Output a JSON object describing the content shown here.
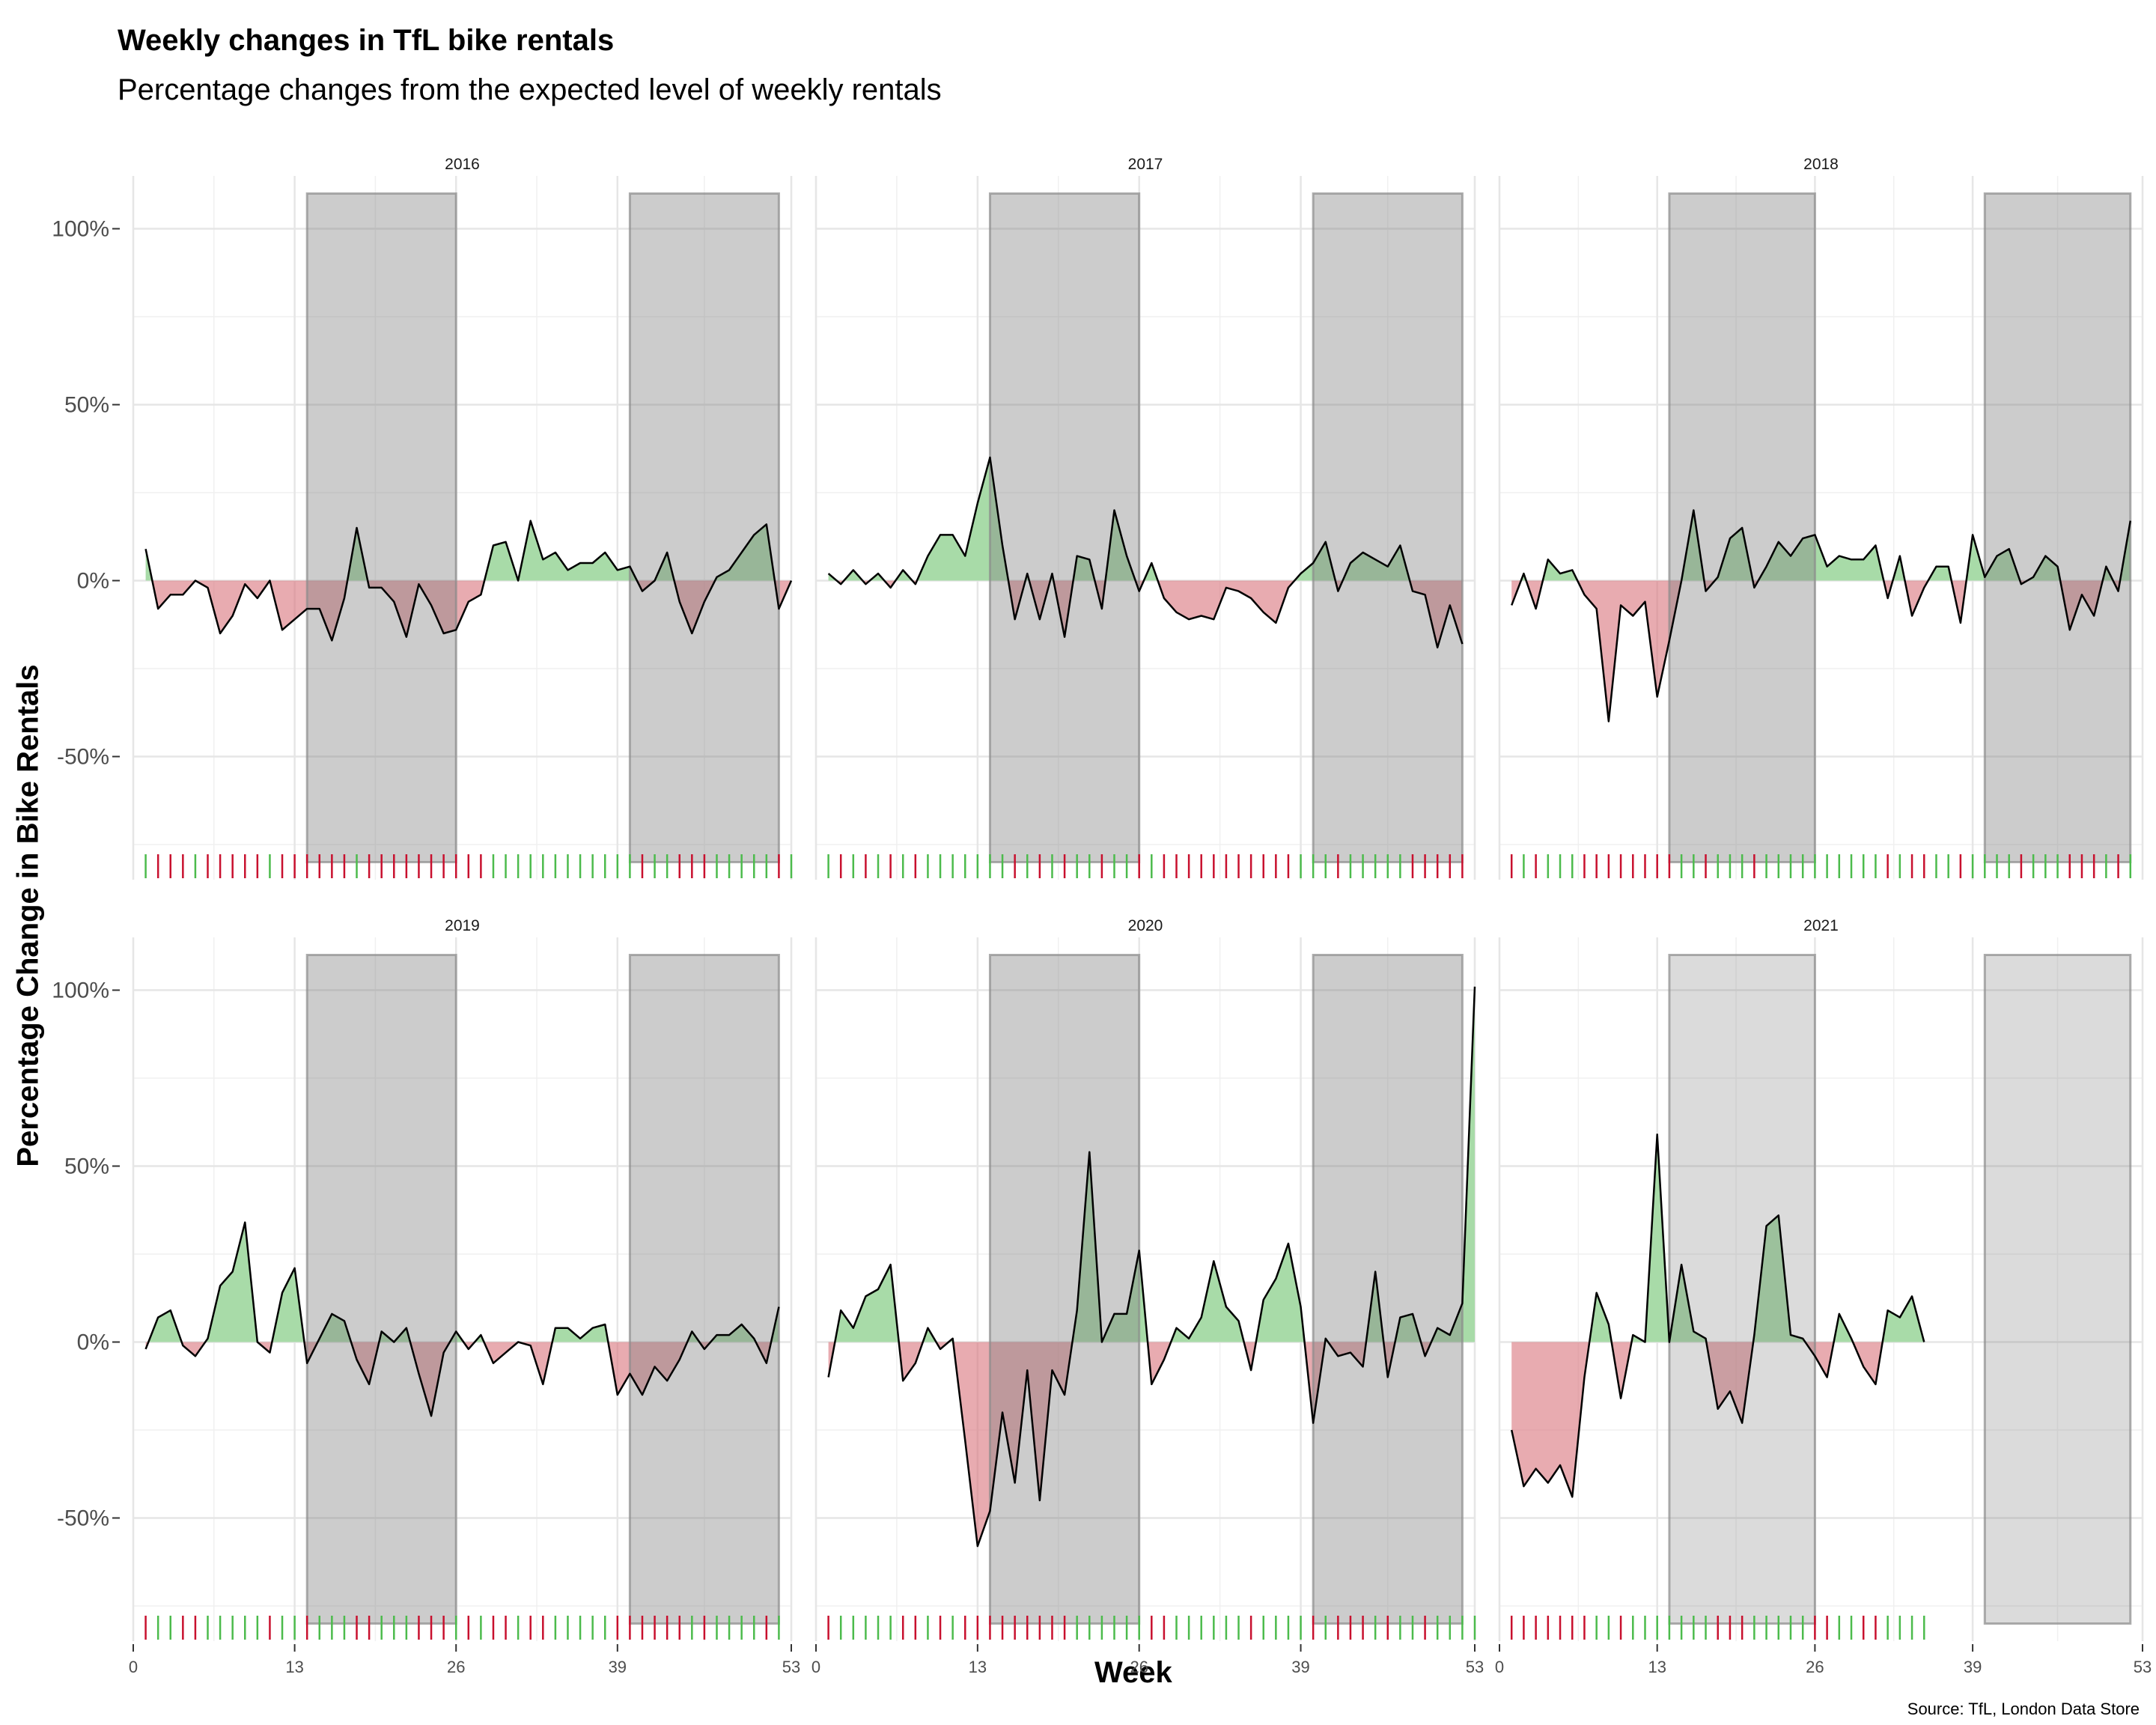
{
  "title": "Weekly changes in TfL bike rentals",
  "subtitle": "Percentage changes from the expected level of weekly rentals",
  "caption": "Source: TfL, London Data Store",
  "chart_data": {
    "type": "area",
    "title": "Weekly changes in TfL bike rentals",
    "subtitle": "Percentage changes from the expected level of weekly rentals",
    "xlabel": "Week",
    "ylabel": "Percentage Change in Bike Rentals",
    "xlim": [
      0,
      53
    ],
    "ylim": [
      -85,
      115
    ],
    "x_ticks": [
      0,
      13,
      26,
      39,
      53
    ],
    "y_ticks": [
      -50,
      50,
      100
    ],
    "y_tick_labels": [
      "-50%",
      "0%",
      "50%",
      "100%"
    ],
    "y_minor_ticks": [
      0
    ],
    "shaded_week_ranges": [
      [
        14,
        26
      ],
      [
        40,
        52
      ]
    ],
    "shaded_y_range": [
      -80,
      110
    ],
    "colors": {
      "positive": "#a8dba8",
      "negative": "#d9737b",
      "rug_positive": "#4cbb4c",
      "rug_negative": "#c8102e",
      "shade": "#7f7f7f",
      "line": "#000000"
    },
    "panels": [
      {
        "year": "2016",
        "shade_intensity": "dark",
        "values": [
          9,
          -8,
          -4,
          -4,
          0,
          -2,
          -15,
          -10,
          -1,
          -5,
          0,
          -14,
          -11,
          -8,
          -8,
          -17,
          -5,
          15,
          -2,
          -2,
          -6,
          -16,
          -1,
          -7,
          -15,
          -14,
          -6,
          -4,
          10,
          11,
          0,
          17,
          6,
          8,
          3,
          5,
          5,
          8,
          3,
          4,
          -3,
          0,
          8,
          -6,
          -15,
          -6,
          1,
          3,
          8,
          13,
          16,
          -8,
          0
        ]
      },
      {
        "year": "2017",
        "shade_intensity": "dark",
        "values": [
          2,
          -1,
          3,
          -1,
          2,
          -2,
          3,
          -1,
          7,
          13,
          13,
          7,
          22,
          35,
          10,
          -11,
          2,
          -11,
          2,
          -16,
          7,
          6,
          -8,
          20,
          7,
          -3,
          5,
          -5,
          -9,
          -11,
          -10,
          -11,
          -2,
          -3,
          -5,
          -9,
          -12,
          -2,
          2,
          5,
          11,
          -3,
          5,
          8,
          6,
          4,
          10,
          -3,
          -4,
          -19,
          -7,
          -18
        ]
      },
      {
        "year": "2018",
        "shade_intensity": "dark",
        "values": [
          -7,
          2,
          -8,
          6,
          2,
          3,
          -4,
          -8,
          -40,
          -7,
          -10,
          -6,
          -33,
          -17,
          0,
          20,
          -3,
          1,
          12,
          15,
          -2,
          4,
          11,
          7,
          12,
          13,
          4,
          7,
          6,
          6,
          10,
          -5,
          7,
          -10,
          -2,
          4,
          4,
          -12,
          13,
          1,
          7,
          9,
          -1,
          1,
          7,
          4,
          -14,
          -4,
          -10,
          4,
          -3,
          17
        ]
      },
      {
        "year": "2019",
        "shade_intensity": "dark",
        "values": [
          -2,
          7,
          9,
          -1,
          -4,
          1,
          16,
          20,
          34,
          0,
          -3,
          14,
          21,
          -6,
          1,
          8,
          6,
          -5,
          -12,
          3,
          0,
          4,
          -9,
          -21,
          -3,
          3,
          -2,
          2,
          -6,
          -3,
          0,
          -1,
          -12,
          4,
          4,
          1,
          4,
          5,
          -15,
          -9,
          -15,
          -7,
          -11,
          -5,
          3,
          -2,
          2,
          2,
          5,
          1,
          -6,
          10
        ]
      },
      {
        "year": "2020",
        "shade_intensity": "dark",
        "values": [
          -10,
          9,
          4,
          13,
          15,
          22,
          -11,
          -6,
          4,
          -2,
          1,
          -28,
          -58,
          -48,
          -20,
          -40,
          -8,
          -45,
          -8,
          -15,
          9,
          54,
          0,
          8,
          8,
          26,
          -12,
          -5,
          4,
          1,
          7,
          23,
          10,
          6,
          -8,
          12,
          18,
          28,
          10,
          -23,
          1,
          -4,
          -3,
          -7,
          20,
          -10,
          7,
          8,
          -4,
          4,
          2,
          11,
          101
        ]
      },
      {
        "year": "2021",
        "shade_intensity": "light",
        "values": [
          -25,
          -41,
          -36,
          -40,
          -35,
          -44,
          -10,
          14,
          5,
          -16,
          2,
          0,
          59,
          0,
          22,
          3,
          1,
          -19,
          -14,
          -23,
          2,
          33,
          36,
          2,
          1,
          -4,
          -10,
          8,
          1,
          -7,
          -12,
          9,
          7,
          13,
          0
        ]
      }
    ]
  }
}
